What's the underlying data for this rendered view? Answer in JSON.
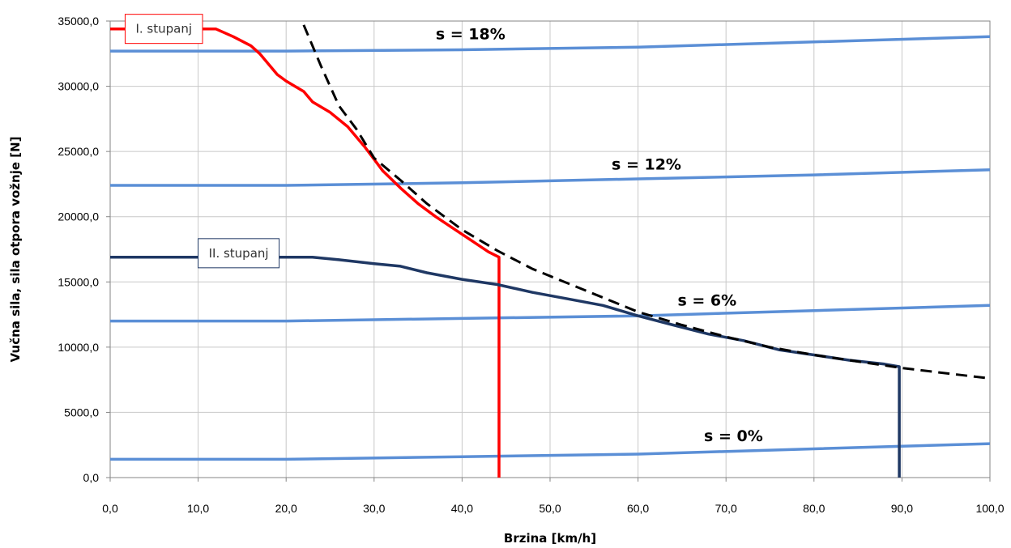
{
  "chart_data": {
    "type": "line",
    "xlabel": "Brzina [km/h]",
    "ylabel": "Vučna sila, sila otpora vožnje [N]",
    "xlim": [
      0,
      100
    ],
    "ylim": [
      0,
      35000
    ],
    "x_ticks": [
      "0,0",
      "10,0",
      "20,0",
      "30,0",
      "40,0",
      "50,0",
      "60,0",
      "70,0",
      "80,0",
      "90,0",
      "100,0"
    ],
    "y_ticks": [
      "0,0",
      "5000,0",
      "10000,0",
      "15000,0",
      "20000,0",
      "25000,0",
      "30000,0",
      "35000,0"
    ],
    "grid": true,
    "series": [
      {
        "name": "I. stupanj",
        "color": "#ff0000",
        "style": "solid",
        "points": [
          [
            0,
            34400
          ],
          [
            12,
            34400
          ],
          [
            14,
            33800
          ],
          [
            16,
            33100
          ],
          [
            17,
            32500
          ],
          [
            18,
            31700
          ],
          [
            19,
            30900
          ],
          [
            20,
            30400
          ],
          [
            21,
            30000
          ],
          [
            22,
            29600
          ],
          [
            23,
            28800
          ],
          [
            25,
            28000
          ],
          [
            27,
            26900
          ],
          [
            29,
            25300
          ],
          [
            31,
            23500
          ],
          [
            33,
            22200
          ],
          [
            35,
            21000
          ],
          [
            37,
            20000
          ],
          [
            39,
            19100
          ],
          [
            41,
            18200
          ],
          [
            43,
            17300
          ],
          [
            44.2,
            16900
          ],
          [
            44.2,
            0
          ]
        ]
      },
      {
        "name": "II. stupanj",
        "color": "#1f3864",
        "style": "solid",
        "points": [
          [
            0,
            16900
          ],
          [
            10,
            16900
          ],
          [
            20,
            16900
          ],
          [
            23,
            16900
          ],
          [
            26,
            16700
          ],
          [
            30,
            16400
          ],
          [
            33,
            16200
          ],
          [
            36,
            15700
          ],
          [
            40,
            15200
          ],
          [
            44,
            14800
          ],
          [
            48,
            14200
          ],
          [
            52,
            13700
          ],
          [
            56,
            13200
          ],
          [
            60,
            12400
          ],
          [
            64,
            11700
          ],
          [
            68,
            11000
          ],
          [
            72,
            10500
          ],
          [
            76,
            9800
          ],
          [
            80,
            9400
          ],
          [
            84,
            9000
          ],
          [
            88,
            8700
          ],
          [
            89.7,
            8500
          ],
          [
            89.7,
            0
          ]
        ]
      },
      {
        "name": "",
        "color": "#000000",
        "style": "dashed",
        "points": [
          [
            22,
            34700
          ],
          [
            24,
            31500
          ],
          [
            26,
            28500
          ],
          [
            28,
            26700
          ],
          [
            30,
            24500
          ],
          [
            33,
            22800
          ],
          [
            36,
            21000
          ],
          [
            40,
            19000
          ],
          [
            44,
            17400
          ],
          [
            48,
            16000
          ],
          [
            52,
            14900
          ],
          [
            56,
            13800
          ],
          [
            60,
            12700
          ],
          [
            65,
            11700
          ],
          [
            70,
            10800
          ],
          [
            75,
            10000
          ],
          [
            80,
            9400
          ],
          [
            85,
            8900
          ],
          [
            90,
            8400
          ],
          [
            95,
            8000
          ],
          [
            100,
            7600
          ]
        ]
      },
      {
        "name": "s = 18%",
        "color": "#5b8fd6",
        "style": "solid",
        "points": [
          [
            0,
            32700
          ],
          [
            20,
            32700
          ],
          [
            40,
            32800
          ],
          [
            60,
            33000
          ],
          [
            80,
            33400
          ],
          [
            100,
            33800
          ]
        ]
      },
      {
        "name": "s = 12%",
        "color": "#5b8fd6",
        "style": "solid",
        "points": [
          [
            0,
            22400
          ],
          [
            20,
            22400
          ],
          [
            40,
            22600
          ],
          [
            60,
            22900
          ],
          [
            80,
            23200
          ],
          [
            100,
            23600
          ]
        ]
      },
      {
        "name": "s = 6%",
        "color": "#5b8fd6",
        "style": "solid",
        "points": [
          [
            0,
            12000
          ],
          [
            20,
            12000
          ],
          [
            40,
            12200
          ],
          [
            60,
            12400
          ],
          [
            80,
            12800
          ],
          [
            100,
            13200
          ]
        ]
      },
      {
        "name": "s = 0%",
        "color": "#5b8fd6",
        "style": "solid",
        "points": [
          [
            0,
            1400
          ],
          [
            20,
            1400
          ],
          [
            40,
            1600
          ],
          [
            60,
            1800
          ],
          [
            80,
            2200
          ],
          [
            100,
            2600
          ]
        ]
      }
    ],
    "annotations": [
      {
        "text": "s = 18%",
        "x": 37,
        "y": 33600
      },
      {
        "text": "s = 12%",
        "x": 57,
        "y": 23600
      },
      {
        "text": "s = 6%",
        "x": 64.5,
        "y": 13200
      },
      {
        "text": "s = 0%",
        "x": 67.5,
        "y": 2800
      }
    ],
    "callouts": [
      {
        "text": "I. stupanj",
        "x": 1.7,
        "y": 34400,
        "border_color": "#ff0000"
      },
      {
        "text": "II. stupanj",
        "x": 10,
        "y": 17200,
        "border_color": "#1f3864"
      }
    ]
  }
}
